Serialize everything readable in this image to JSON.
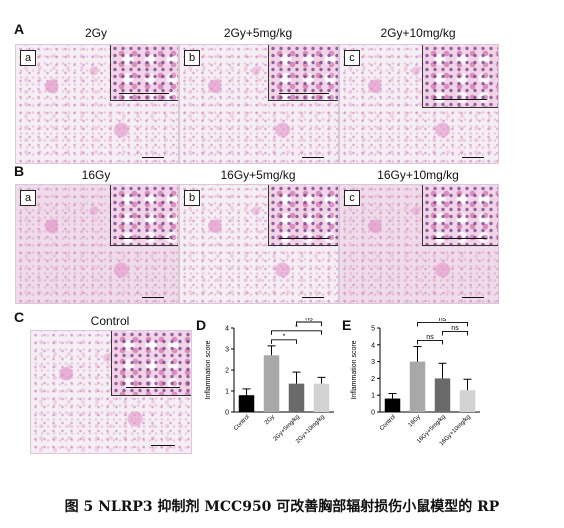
{
  "panel_a": {
    "letter": "A",
    "titles": [
      "2Gy",
      "2Gy+5mg/kg",
      "2Gy+10mg/kg"
    ],
    "sublabels": [
      "a",
      "b",
      "c"
    ]
  },
  "panel_b": {
    "letter": "B",
    "titles": [
      "16Gy",
      "16Gy+5mg/kg",
      "16Gy+10mg/kg"
    ],
    "sublabels": [
      "a",
      "b",
      "c"
    ]
  },
  "panel_c": {
    "letter": "C",
    "title": "Control"
  },
  "panel_d": {
    "letter": "D"
  },
  "panel_e": {
    "letter": "E"
  },
  "chart_data": [
    {
      "panel": "D",
      "type": "bar",
      "categories": [
        "Control",
        "2Gy",
        "2Gy+5mg/kg",
        "2Gy+10mg/kg"
      ],
      "values": [
        0.8,
        2.7,
        1.35,
        1.35
      ],
      "errors": [
        0.3,
        0.45,
        0.55,
        0.3
      ],
      "colors": [
        "#000000",
        "#a8a8a8",
        "#6a6a6a",
        "#d2d2d2"
      ],
      "ylabel": "Inflammation score",
      "ylim": [
        0,
        4
      ],
      "yticks": [
        "0",
        "1",
        "2",
        "3",
        "4"
      ],
      "significance": [
        {
          "from": 1,
          "to": 2,
          "label": "*"
        },
        {
          "from": 1,
          "to": 3,
          "label": "*"
        },
        {
          "from": 2,
          "to": 3,
          "label": "ns"
        }
      ]
    },
    {
      "panel": "E",
      "type": "bar",
      "categories": [
        "Control",
        "16Gy",
        "16Gy+5mg/kg",
        "16Gy+10mg/kg"
      ],
      "values": [
        0.8,
        3.0,
        2.0,
        1.3
      ],
      "errors": [
        0.3,
        0.9,
        0.9,
        0.65
      ],
      "colors": [
        "#000000",
        "#a8a8a8",
        "#6a6a6a",
        "#d2d2d2"
      ],
      "ylabel": "Inflammation score",
      "ylim": [
        0,
        5
      ],
      "yticks": [
        "0",
        "1",
        "2",
        "3",
        "4",
        "5"
      ],
      "significance": [
        {
          "from": 1,
          "to": 2,
          "label": "ns"
        },
        {
          "from": 2,
          "to": 3,
          "label": "ns"
        },
        {
          "from": 1,
          "to": 3,
          "label": "ns"
        }
      ]
    }
  ],
  "caption": "图 5 NLRP3 抑制剂 MCC950 可改善胸部辐射损伤小鼠模型的 RP"
}
